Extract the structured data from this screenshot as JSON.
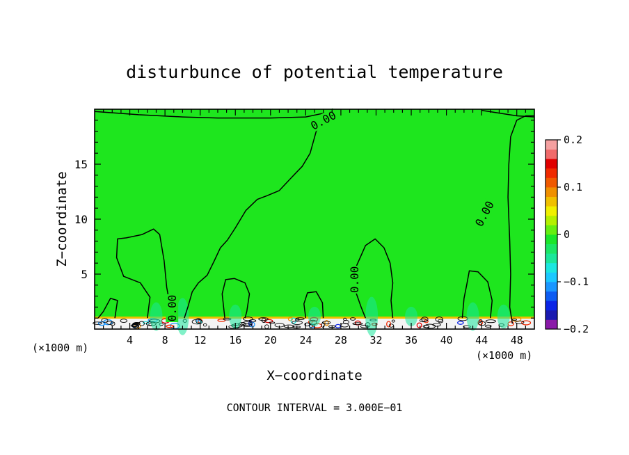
{
  "chart_data": {
    "type": "contour",
    "title": "disturbunce of potential temperature",
    "xlabel": "X−coordinate",
    "ylabel": "Z−coordinate",
    "x_unit_label": "(×1000 m)",
    "x_unit_label_right": "(×1000 m)",
    "xlim": [
      0,
      50
    ],
    "ylim": [
      0,
      20
    ],
    "x_ticks": [
      "4",
      "8",
      "12",
      "16",
      "20",
      "24",
      "28",
      "32",
      "36",
      "40",
      "44",
      "48"
    ],
    "x_tick_values": [
      4,
      8,
      12,
      16,
      20,
      24,
      28,
      32,
      36,
      40,
      44,
      48
    ],
    "y_ticks": [
      "5",
      "10",
      "15"
    ],
    "y_tick_values": [
      5,
      10,
      15
    ],
    "contour_interval_text": "CONTOUR INTERVAL = 3.000E−01",
    "contour_labels": [
      {
        "text": "0.00",
        "x": 26.0,
        "y": 19.0,
        "rot": -28
      },
      {
        "text": "0.00",
        "x": 44.3,
        "y": 10.5,
        "rot": -62
      },
      {
        "text": "0.00",
        "x": 29.5,
        "y": 4.5,
        "rot": -90
      },
      {
        "text": "0.00",
        "x": 8.8,
        "y": 1.9,
        "rot": -90
      }
    ],
    "colorbar": {
      "min": -0.2,
      "max": 0.2,
      "tick_labels": [
        "0.2",
        "0.1",
        "0",
        "−0.1",
        "−0.2"
      ],
      "tick_values": [
        0.2,
        0.1,
        0.0,
        -0.1,
        -0.2
      ],
      "colors": [
        "#8a1aa8",
        "#1a1ab0",
        "#0a24e6",
        "#0d5cf2",
        "#1a96ff",
        "#1ac8ff",
        "#1ae6e0",
        "#1ae69a",
        "#1ae664",
        "#1ae62a",
        "#66ee11",
        "#b4f000",
        "#f0f000",
        "#f0c000",
        "#f09000",
        "#f05a00",
        "#f02a00",
        "#e00000",
        "#f06a6a",
        "#f4a0a0"
      ]
    },
    "background_field_color": "#1ee61e",
    "contour_value": 0.0
  }
}
